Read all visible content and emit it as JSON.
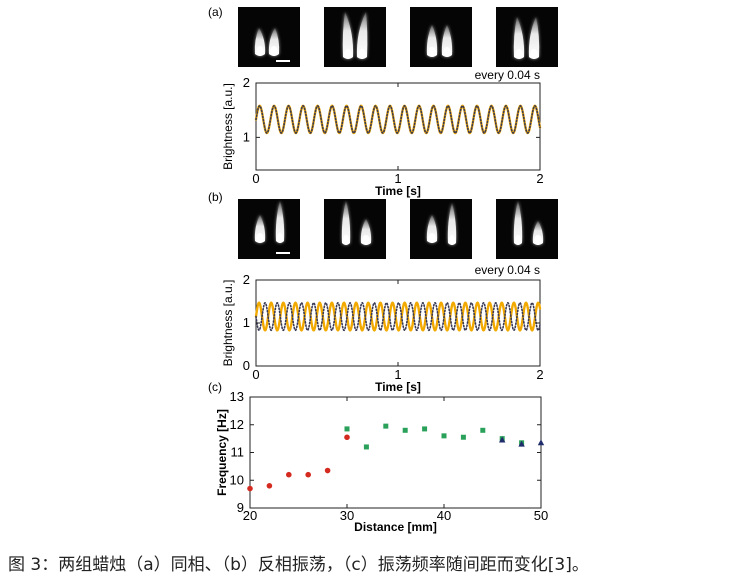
{
  "caption": "图 3：两组蜡烛（a）同相、（b）反相振荡，（c）振荡频率随间距而变化[3]。",
  "colors": {
    "orange": "#F2A900",
    "dotted": "#3a3a55",
    "red": "#d42a1f",
    "green": "#2aa15a",
    "blue": "#1f2d6b"
  },
  "icons": [
    "candle-flame-image"
  ],
  "panels": {
    "a": {
      "label": "(a)",
      "every": "every 0.04 s",
      "frames": [
        "frame-1",
        "frame-2",
        "frame-3",
        "frame-4"
      ]
    },
    "b": {
      "label": "(b)",
      "every": "every 0.04 s",
      "frames": [
        "frame-1",
        "frame-2",
        "frame-3",
        "frame-4"
      ]
    },
    "c": {
      "label": "(c)"
    }
  },
  "chart_data": [
    {
      "type": "line",
      "panel": "a",
      "xlabel": "Time [s]",
      "ylabel": "Brightness [a.u.]",
      "xlim": [
        0,
        2
      ],
      "ylim": [
        0.4,
        2
      ],
      "xticks": [
        0,
        1,
        2
      ],
      "yticks": [
        1,
        2
      ],
      "series": [
        {
          "style": "solid-orange",
          "color": "#F2A900",
          "phase": "in-phase",
          "frequency_hz": 9.8,
          "mean": 1.33,
          "amplitude": 0.25
        },
        {
          "style": "dotted-dark",
          "color": "#3a3a55",
          "phase": "in-phase",
          "frequency_hz": 9.8,
          "mean": 1.33,
          "amplitude": 0.25
        }
      ]
    },
    {
      "type": "line",
      "panel": "b",
      "xlabel": "Time [s]",
      "ylabel": "Brightness [a.u.]",
      "xlim": [
        0,
        2
      ],
      "ylim": [
        0,
        2
      ],
      "xticks": [
        0,
        1,
        2
      ],
      "yticks": [
        0,
        1,
        2
      ],
      "series": [
        {
          "style": "solid-orange",
          "color": "#F2A900",
          "phase": "anti-phase",
          "frequency_hz": 11.7,
          "mean": 1.15,
          "amplitude": 0.32
        },
        {
          "style": "dotted-dark",
          "color": "#3a3a55",
          "phase": "anti-phase",
          "frequency_hz": 11.7,
          "mean": 1.15,
          "amplitude": 0.32
        }
      ]
    },
    {
      "type": "scatter",
      "panel": "c",
      "xlabel": "Distance [mm]",
      "ylabel": "Frequency [Hz]",
      "xlim": [
        20,
        50
      ],
      "ylim": [
        9,
        13
      ],
      "xticks": [
        20,
        30,
        40,
        50
      ],
      "yticks": [
        9,
        10,
        11,
        12,
        13
      ],
      "series": [
        {
          "marker": "circle",
          "color": "#d42a1f",
          "points": [
            [
              20,
              9.7
            ],
            [
              22,
              9.8
            ],
            [
              24,
              10.2
            ],
            [
              26,
              10.2
            ],
            [
              28,
              10.35
            ],
            [
              30,
              11.55
            ]
          ]
        },
        {
          "marker": "square",
          "color": "#2aa15a",
          "points": [
            [
              30,
              11.85
            ],
            [
              32,
              11.2
            ],
            [
              34,
              11.95
            ],
            [
              36,
              11.8
            ],
            [
              38,
              11.85
            ],
            [
              40,
              11.6
            ],
            [
              42,
              11.55
            ],
            [
              44,
              11.8
            ],
            [
              46,
              11.5
            ],
            [
              48,
              11.35
            ]
          ]
        },
        {
          "marker": "triangle",
          "color": "#1f2d6b",
          "points": [
            [
              46,
              11.45
            ],
            [
              48,
              11.3
            ],
            [
              50,
              11.35
            ]
          ]
        }
      ]
    }
  ]
}
